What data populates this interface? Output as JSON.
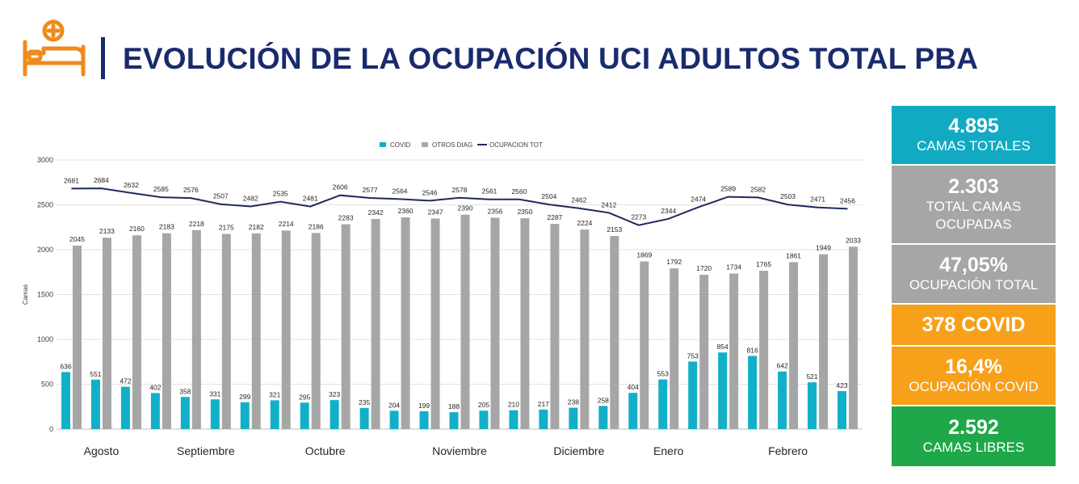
{
  "header": {
    "title": "EVOLUCIÓN DE LA OCUPACIÓN UCI ADULTOS TOTAL PBA",
    "icon": "hospital-bed-icon"
  },
  "colors": {
    "title": "#1a2b6d",
    "covid": "#12b0c8",
    "otros": "#a6a6a6",
    "total_line": "#1f2a5c",
    "stat_teal": "#12aac3",
    "stat_gray": "#a6a6a6",
    "stat_orange": "#f7a01a",
    "stat_green": "#1fa84a",
    "icon_orange": "#f08a1c"
  },
  "chart_data": {
    "type": "bar",
    "ylabel": "Camas",
    "ylim": [
      0,
      3000
    ],
    "yticks": [
      0,
      500,
      1000,
      1500,
      2000,
      2500,
      3000
    ],
    "grid": true,
    "legend_position": "top",
    "series": [
      {
        "name": "COVID",
        "type": "bar",
        "values": [
          636,
          551,
          472,
          402,
          358,
          331,
          299,
          321,
          295,
          323,
          235,
          204,
          199,
          188,
          205,
          210,
          217,
          238,
          258,
          404,
          553,
          753,
          854,
          816,
          642,
          521,
          423
        ]
      },
      {
        "name": "OTROS DIAG",
        "type": "bar",
        "values": [
          2045,
          2133,
          2160,
          2183,
          2218,
          2175,
          2182,
          2214,
          2186,
          2283,
          2342,
          2360,
          2347,
          2390,
          2356,
          2350,
          2287,
          2224,
          2153,
          1869,
          1792,
          1720,
          1734,
          1765,
          1861,
          1949,
          2033
        ]
      },
      {
        "name": "OCUPACION TOT",
        "type": "line",
        "values": [
          2681,
          2684,
          2632,
          2585,
          2576,
          2507,
          2482,
          2535,
          2481,
          2606,
          2577,
          2564,
          2546,
          2578,
          2561,
          2560,
          2504,
          2462,
          2412,
          2273,
          2344,
          2474,
          2589,
          2582,
          2503,
          2471,
          2456
        ]
      }
    ],
    "months": [
      {
        "label": "Agosto",
        "start": 0,
        "end": 2
      },
      {
        "label": "Septiembre",
        "start": 3,
        "end": 6
      },
      {
        "label": "Octubre",
        "start": 7,
        "end": 10
      },
      {
        "label": "Noviembre",
        "start": 11,
        "end": 15
      },
      {
        "label": "Diciembre",
        "start": 16,
        "end": 18
      },
      {
        "label": "Enero",
        "start": 19,
        "end": 21
      },
      {
        "label": "Febrero",
        "start": 22,
        "end": 26
      }
    ]
  },
  "stats": [
    {
      "value": "4.895",
      "label": "CAMAS TOTALES",
      "color": "#12aac3"
    },
    {
      "value": "2.303",
      "label": "TOTAL CAMAS OCUPADAS",
      "color": "#a6a6a6"
    },
    {
      "value": "47,05%",
      "label": "OCUPACIÓN TOTAL",
      "color": "#a6a6a6"
    },
    {
      "value": "378 COVID",
      "label": "",
      "color": "#f7a01a"
    },
    {
      "value": "16,4%",
      "label": "OCUPACIÓN COVID",
      "color": "#f7a01a"
    },
    {
      "value": "2.592",
      "label": "CAMAS LIBRES",
      "color": "#1fa84a"
    }
  ]
}
